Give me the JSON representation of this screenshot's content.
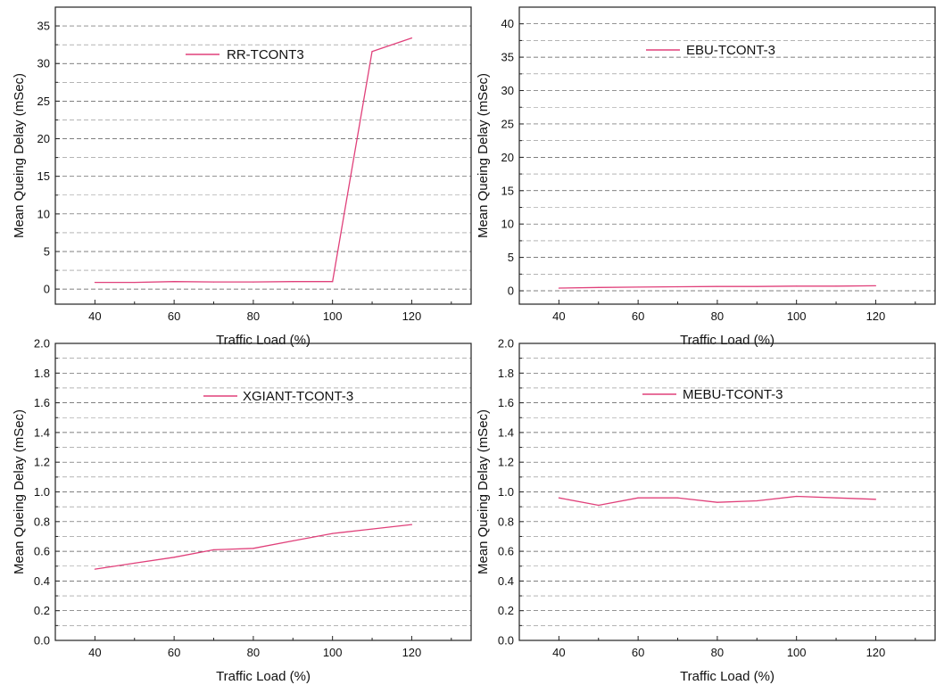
{
  "figure": {
    "background": "#ffffff",
    "series_color": "#e0407a"
  },
  "chart_data": [
    {
      "type": "line",
      "x": [
        40,
        50,
        60,
        70,
        80,
        90,
        100,
        110,
        120
      ],
      "series": [
        {
          "name": "RR-TCONT3",
          "values": [
            0.9,
            0.9,
            1.0,
            0.95,
            0.95,
            1.0,
            1.0,
            31.6,
            33.4
          ]
        }
      ],
      "xlabel": "Traffic Load (%)",
      "ylabel": "Mean Queing Delay (mSec)",
      "xlim": [
        30,
        135
      ],
      "ylim": [
        -2,
        37.5
      ],
      "xticks": [
        40,
        60,
        80,
        100,
        120
      ],
      "xtick_labels": [
        "40",
        "60",
        "80",
        "100",
        "120"
      ],
      "yticks": [
        0,
        5,
        10,
        15,
        20,
        25,
        30,
        35
      ],
      "ytick_labels": [
        "0",
        "5",
        "10",
        "15",
        "20",
        "25",
        "30",
        "35"
      ],
      "grid": true,
      "legend": "top-center"
    },
    {
      "type": "line",
      "x": [
        40,
        50,
        60,
        70,
        80,
        90,
        100,
        110,
        120
      ],
      "series": [
        {
          "name": "EBU-TCONT-3",
          "values": [
            0.4,
            0.5,
            0.55,
            0.6,
            0.65,
            0.65,
            0.7,
            0.7,
            0.75
          ]
        }
      ],
      "xlabel": "Traffic Load (%)",
      "ylabel": "Mean Queing Delay (mSec)",
      "xlim": [
        30,
        135
      ],
      "ylim": [
        -2,
        42.5
      ],
      "xticks": [
        40,
        60,
        80,
        100,
        120
      ],
      "xtick_labels": [
        "40",
        "60",
        "80",
        "100",
        "120"
      ],
      "yticks": [
        0,
        5,
        10,
        15,
        20,
        25,
        30,
        35,
        40
      ],
      "ytick_labels": [
        "0",
        "5",
        "10",
        "15",
        "20",
        "25",
        "30",
        "35",
        "40"
      ],
      "grid": true,
      "legend": "top-center"
    },
    {
      "type": "line",
      "x": [
        40,
        50,
        60,
        70,
        80,
        90,
        100,
        110,
        120
      ],
      "series": [
        {
          "name": "XGIANT-TCONT-3",
          "values": [
            0.48,
            0.52,
            0.56,
            0.61,
            0.62,
            0.67,
            0.72,
            0.75,
            0.78
          ]
        }
      ],
      "xlabel": "Traffic Load (%)",
      "ylabel": "Mean Queing Delay (mSec)",
      "xlim": [
        30,
        135
      ],
      "ylim": [
        0,
        2.0
      ],
      "xticks": [
        40,
        60,
        80,
        100,
        120
      ],
      "xtick_labels": [
        "40",
        "60",
        "80",
        "100",
        "120"
      ],
      "yticks": [
        0,
        0.2,
        0.4,
        0.6,
        0.8,
        1.0,
        1.2,
        1.4,
        1.6,
        1.8,
        2.0
      ],
      "ytick_labels": [
        "0.0",
        "0.2",
        "0.4",
        "0.6",
        "0.8",
        "1.0",
        "1.2",
        "1.4",
        "1.6",
        "1.8",
        "2.0"
      ],
      "grid": true,
      "legend": "top-center"
    },
    {
      "type": "line",
      "x": [
        40,
        50,
        60,
        70,
        80,
        90,
        100,
        110,
        120
      ],
      "series": [
        {
          "name": "MEBU-TCONT-3",
          "values": [
            0.96,
            0.91,
            0.96,
            0.96,
            0.93,
            0.94,
            0.97,
            0.96,
            0.95
          ]
        }
      ],
      "xlabel": "Traffic Load (%)",
      "ylabel": "Mean Queing Delay (mSec)",
      "xlim": [
        30,
        135
      ],
      "ylim": [
        0,
        2.0
      ],
      "xticks": [
        40,
        60,
        80,
        100,
        120
      ],
      "xtick_labels": [
        "40",
        "60",
        "80",
        "100",
        "120"
      ],
      "yticks": [
        0,
        0.2,
        0.4,
        0.6,
        0.8,
        1.0,
        1.2,
        1.4,
        1.6,
        1.8,
        2.0
      ],
      "ytick_labels": [
        "0.0",
        "0.2",
        "0.4",
        "0.6",
        "0.8",
        "1.0",
        "1.2",
        "1.4",
        "1.6",
        "1.8",
        "2.0"
      ],
      "grid": true,
      "legend": "top-center"
    }
  ]
}
